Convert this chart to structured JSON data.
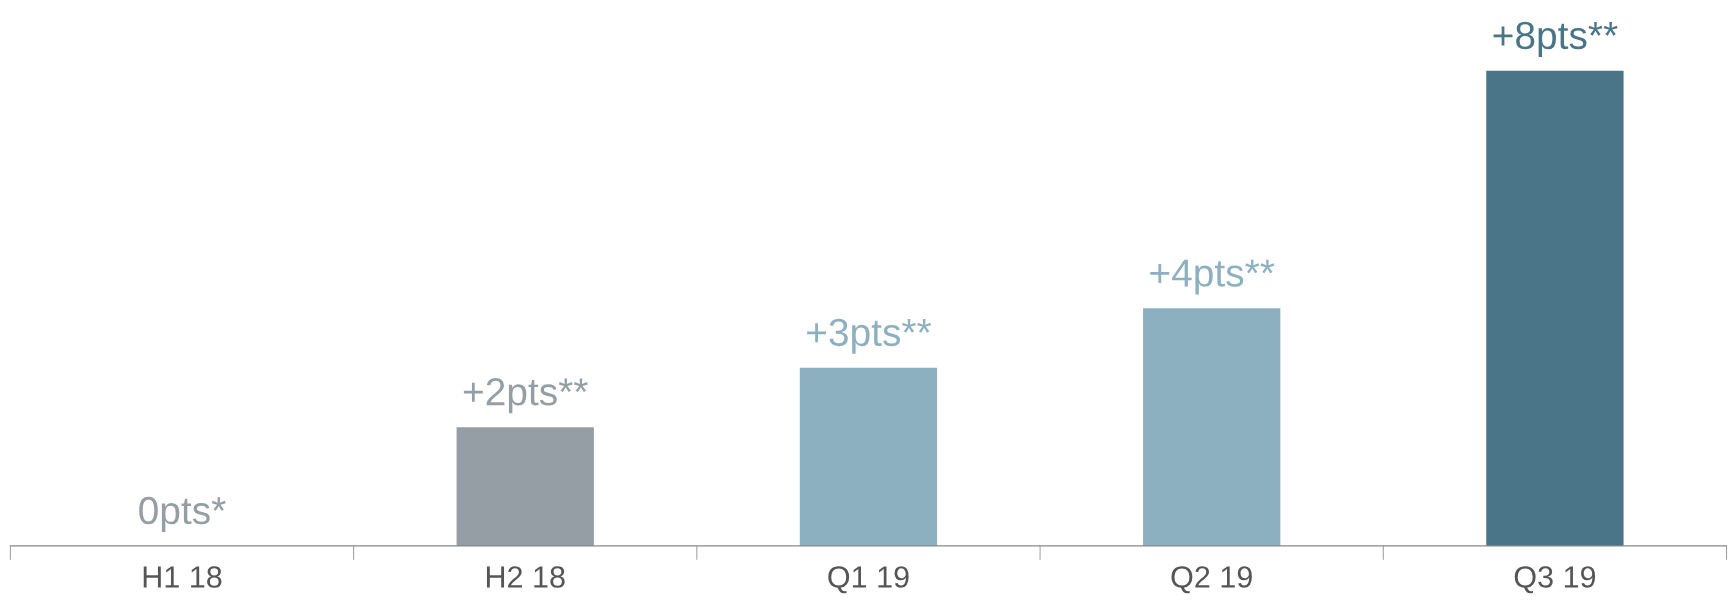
{
  "chart_data": {
    "type": "bar",
    "categories": [
      "H1 18",
      "H2 18",
      "Q1 19",
      "Q2 19",
      "Q3 19"
    ],
    "values": [
      0,
      2,
      3,
      4,
      8
    ],
    "colors": [
      "#959ea5",
      "#959ea5",
      "#8db0c0",
      "#8db0c0",
      "#4a7589"
    ],
    "value_labels": [
      "0pts*",
      "+2pts**",
      "+3pts**",
      "+4pts**",
      "+8pts**"
    ],
    "grid": false,
    "legend": false
  }
}
